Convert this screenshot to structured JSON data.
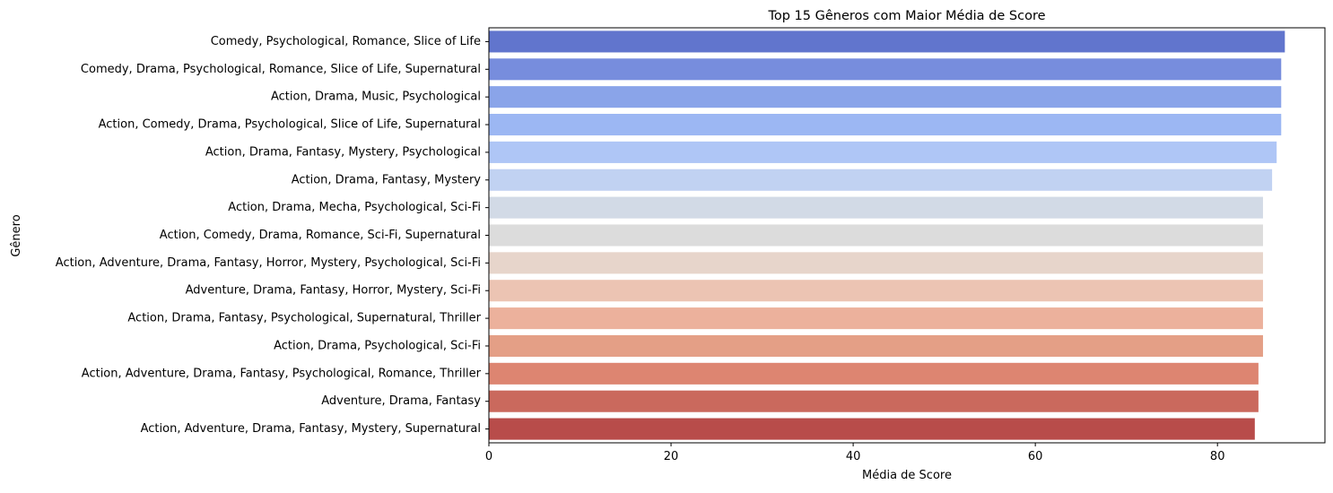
{
  "chart_data": {
    "type": "bar",
    "orientation": "horizontal",
    "title": "Top 15 Gêneros com Maior Média de Score",
    "xlabel": "Média de Score",
    "ylabel": "Gênero",
    "xlim": [
      0,
      91.8
    ],
    "xticks": [
      0,
      20,
      40,
      60,
      80
    ],
    "grid": false,
    "categories": [
      "Comedy, Psychological, Romance, Slice of Life",
      "Comedy, Drama, Psychological, Romance, Slice of Life, Supernatural",
      "Action, Drama, Music, Psychological",
      "Action, Comedy, Drama, Psychological, Slice of Life, Supernatural",
      "Action, Drama, Fantasy, Mystery, Psychological",
      "Action, Drama, Fantasy, Mystery",
      "Action, Drama, Mecha, Psychological, Sci-Fi",
      "Action, Comedy, Drama, Romance, Sci-Fi, Supernatural",
      "Action, Adventure, Drama, Fantasy, Horror, Mystery, Psychological, Sci-Fi",
      "Adventure, Drama, Fantasy, Horror, Mystery, Sci-Fi",
      "Action, Drama, Fantasy, Psychological, Supernatural, Thriller",
      "Action, Drama, Psychological, Sci-Fi",
      "Action, Adventure, Drama, Fantasy, Psychological, Romance, Thriller",
      "Adventure, Drama, Fantasy",
      "Action, Adventure, Drama, Fantasy, Mystery, Supernatural"
    ],
    "values": [
      87.4,
      87.0,
      87.0,
      87.0,
      86.5,
      86.0,
      85.0,
      85.0,
      85.0,
      85.0,
      85.0,
      85.0,
      84.5,
      84.5,
      84.1
    ],
    "colors": [
      "#6175cd",
      "#778ddd",
      "#8aa4e9",
      "#9cb7f3",
      "#afc6f6",
      "#c1d2f2",
      "#d2dae6",
      "#dcdcdc",
      "#e7d5cb",
      "#ecc4b3",
      "#ecb19c",
      "#e49f86",
      "#dd8571",
      "#ca695d",
      "#b84c4a"
    ]
  }
}
